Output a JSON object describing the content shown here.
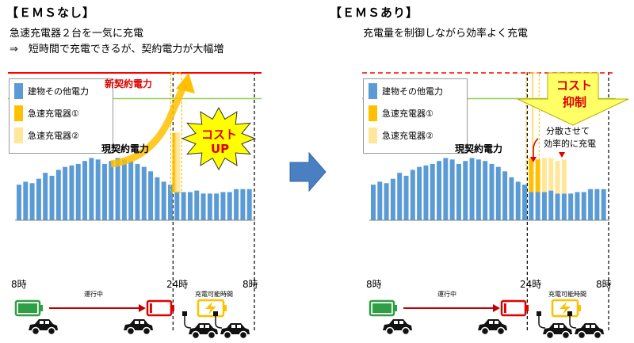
{
  "left": {
    "title": "【ＥＭＳなし】",
    "line1": "急速充電器２台を一気に充電",
    "line2": "⇒　短時間で充電できるが、契約電力が大幅増",
    "new_contract_label": "新契約電力",
    "current_contract_label": "現契約電力",
    "burst_text_1": "コスト",
    "burst_text_2": "UP"
  },
  "right": {
    "title": "【ＥＭＳあり】",
    "line1": "充電量を制御しながら効率よく充電",
    "current_contract_label": "現契約電力",
    "arrow_text_1": "コスト",
    "arrow_text_2": "抑制",
    "note_1": "分散させて",
    "note_2": "効率的に充電"
  },
  "legend": {
    "items": [
      {
        "label": "建物その他電力",
        "color": "#5b9bd5"
      },
      {
        "label": "急速充電器①",
        "color": "#ffc000"
      },
      {
        "label": "急速充電器②",
        "color": "#ffe699"
      }
    ]
  },
  "timeline": {
    "tick_start": "8時",
    "tick_mid": "24時",
    "tick_end": "8時",
    "running_label": "運行中",
    "charge_window_label": "充電可能時間"
  },
  "colors": {
    "building": "#5b9bd5",
    "charger1": "#ffc000",
    "charger2": "#ffe699",
    "contract_new": "#ff0000",
    "contract_current": "#92d050",
    "burst": "#ffff00",
    "suppress_arrow": "#ffff66",
    "battery_full": "#2f9e44",
    "battery_empty": "#e00000",
    "battery_charging": "#ffc000"
  },
  "chart_data": [
    {
      "type": "bar",
      "name": "EMS-none",
      "series": [
        {
          "name": "建物その他電力",
          "values": [
            24,
            26,
            25,
            28,
            32,
            30,
            34,
            36,
            37,
            38,
            40,
            42,
            41,
            38,
            40,
            42,
            41,
            40,
            38,
            36,
            33,
            29,
            26,
            24,
            19,
            19,
            19,
            20,
            18,
            18,
            18,
            19,
            19,
            21,
            21,
            21
          ]
        },
        {
          "name": "急速充電器①",
          "values": [
            0,
            0,
            0,
            0,
            0,
            0,
            0,
            0,
            0,
            0,
            0,
            0,
            0,
            0,
            0,
            0,
            0,
            0,
            0,
            0,
            0,
            0,
            0,
            0,
            40,
            0,
            0,
            0,
            0,
            0,
            0,
            0,
            0,
            0,
            0,
            0
          ]
        },
        {
          "name": "急速充電器②",
          "values": [
            0,
            0,
            0,
            0,
            0,
            0,
            0,
            0,
            0,
            0,
            0,
            0,
            0,
            0,
            0,
            0,
            0,
            0,
            0,
            0,
            0,
            0,
            0,
            0,
            40,
            0,
            0,
            0,
            0,
            0,
            0,
            0,
            0,
            0,
            0,
            0
          ]
        }
      ],
      "x_ticks": [
        "8時",
        "24時",
        "8時"
      ],
      "current_contract": 42,
      "new_contract": 100
    },
    {
      "type": "bar",
      "name": "EMS-with",
      "series": [
        {
          "name": "建物その他電力",
          "values": [
            24,
            26,
            25,
            28,
            32,
            30,
            34,
            36,
            37,
            38,
            40,
            42,
            41,
            38,
            40,
            42,
            41,
            40,
            38,
            36,
            33,
            29,
            26,
            24,
            19,
            19,
            19,
            20,
            18,
            18,
            18,
            19,
            19,
            21,
            21,
            21
          ]
        },
        {
          "name": "急速充電器①",
          "values": [
            0,
            0,
            0,
            0,
            0,
            0,
            0,
            0,
            0,
            0,
            0,
            0,
            0,
            0,
            0,
            0,
            0,
            0,
            0,
            0,
            0,
            0,
            0,
            0,
            23,
            22,
            0,
            0,
            0,
            0,
            0,
            0,
            0,
            0,
            0,
            0
          ]
        },
        {
          "name": "急速充電器②",
          "values": [
            0,
            0,
            0,
            0,
            0,
            0,
            0,
            0,
            0,
            0,
            0,
            0,
            0,
            0,
            0,
            0,
            0,
            0,
            0,
            0,
            0,
            0,
            0,
            0,
            0,
            0,
            23,
            22,
            22,
            23,
            0,
            0,
            0,
            0,
            0,
            0
          ]
        }
      ],
      "x_ticks": [
        "8時",
        "24時",
        "8時"
      ],
      "current_contract": 42
    }
  ]
}
